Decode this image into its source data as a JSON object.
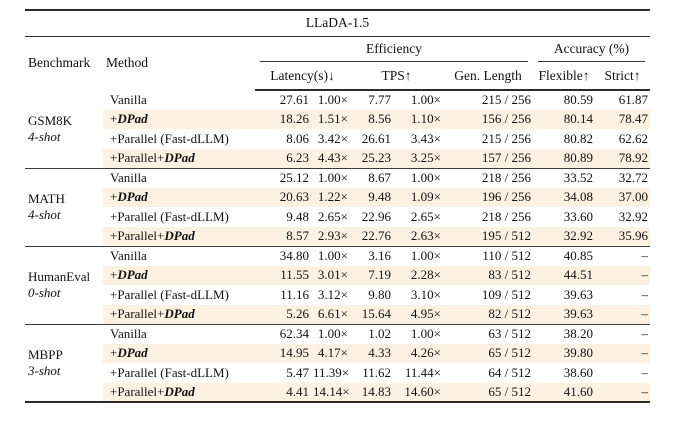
{
  "title": "LLaDA-1.5",
  "colors": {
    "highlight_row": "#fdf2e2",
    "rule": "#2b2b2b",
    "text": "#111111",
    "background": "#ffffff"
  },
  "columns": {
    "benchmark": "Benchmark",
    "method": "Method",
    "efficiency_group": "Efficiency",
    "accuracy_group": "Accuracy (%)",
    "latency": "Latency(s)↓",
    "tps": "TPS↑",
    "gen_length": "Gen. Length",
    "flexible": "Flexible↑",
    "strict": "Strict↑"
  },
  "groups": [
    {
      "benchmark": "GSM8K",
      "shots": "4-shot",
      "rows": [
        {
          "method_prefix": "Vanilla",
          "method_dpad": "",
          "latency": "27.61",
          "latency_x": "1.00×",
          "tps": "7.77",
          "tps_x": "1.00×",
          "gen_length": "215 / 256",
          "flexible": "80.59",
          "strict": "61.87",
          "highlight": false,
          "bold_latency": false
        },
        {
          "method_prefix": "+",
          "method_dpad": "DPad",
          "latency": "18.26",
          "latency_x": "1.51×",
          "tps": "8.56",
          "tps_x": "1.10×",
          "gen_length": "156 / 256",
          "flexible": "80.14",
          "strict": "78.47",
          "highlight": true,
          "bold_latency": false
        },
        {
          "method_prefix": "+Parallel (Fast-dLLM)",
          "method_dpad": "",
          "latency": "8.06",
          "latency_x": "3.42×",
          "tps": "26.61",
          "tps_x": "3.43×",
          "gen_length": "215 / 256",
          "flexible": "80.82",
          "strict": "62.62",
          "highlight": false,
          "bold_latency": false
        },
        {
          "method_prefix": "+Parallel+",
          "method_dpad": "DPad",
          "latency": "6.23",
          "latency_x": "4.43×",
          "tps": "25.23",
          "tps_x": "3.25×",
          "gen_length": "157 / 256",
          "flexible": "80.89",
          "strict": "78.92",
          "highlight": true,
          "bold_latency": true
        }
      ]
    },
    {
      "benchmark": "MATH",
      "shots": "4-shot",
      "rows": [
        {
          "method_prefix": "Vanilla",
          "method_dpad": "",
          "latency": "25.12",
          "latency_x": "1.00×",
          "tps": "8.67",
          "tps_x": "1.00×",
          "gen_length": "218 / 256",
          "flexible": "33.52",
          "strict": "32.72",
          "highlight": false,
          "bold_latency": false
        },
        {
          "method_prefix": "+",
          "method_dpad": "DPad",
          "latency": "20.63",
          "latency_x": "1.22×",
          "tps": "9.48",
          "tps_x": "1.09×",
          "gen_length": "196 / 256",
          "flexible": "34.08",
          "strict": "37.00",
          "highlight": true,
          "bold_latency": false
        },
        {
          "method_prefix": "+Parallel (Fast-dLLM)",
          "method_dpad": "",
          "latency": "9.48",
          "latency_x": "2.65×",
          "tps": "22.96",
          "tps_x": "2.65×",
          "gen_length": "218 / 256",
          "flexible": "33.60",
          "strict": "32.92",
          "highlight": false,
          "bold_latency": false
        },
        {
          "method_prefix": "+Parallel+",
          "method_dpad": "DPad",
          "latency": "8.57",
          "latency_x": "2.93×",
          "tps": "22.76",
          "tps_x": "2.63×",
          "gen_length": "195 / 512",
          "flexible": "32.92",
          "strict": "35.96",
          "highlight": true,
          "bold_latency": true
        }
      ]
    },
    {
      "benchmark": "HumanEval",
      "shots": "0-shot",
      "rows": [
        {
          "method_prefix": "Vanilla",
          "method_dpad": "",
          "latency": "34.80",
          "latency_x": "1.00×",
          "tps": "3.16",
          "tps_x": "1.00×",
          "gen_length": "110 / 512",
          "flexible": "40.85",
          "strict": "–",
          "highlight": false,
          "bold_latency": false
        },
        {
          "method_prefix": "+",
          "method_dpad": "DPad",
          "latency": "11.55",
          "latency_x": "3.01×",
          "tps": "7.19",
          "tps_x": "2.28×",
          "gen_length": "83 / 512",
          "flexible": "44.51",
          "strict": "–",
          "highlight": true,
          "bold_latency": false
        },
        {
          "method_prefix": "+Parallel (Fast-dLLM)",
          "method_dpad": "",
          "latency": "11.16",
          "latency_x": "3.12×",
          "tps": "9.80",
          "tps_x": "3.10×",
          "gen_length": "109 / 512",
          "flexible": "39.63",
          "strict": "–",
          "highlight": false,
          "bold_latency": false
        },
        {
          "method_prefix": "+Parallel+",
          "method_dpad": "DPad",
          "latency": "5.26",
          "latency_x": "6.61×",
          "tps": "15.64",
          "tps_x": "4.95×",
          "gen_length": "82 / 512",
          "flexible": "39.63",
          "strict": "–",
          "highlight": true,
          "bold_latency": true
        }
      ]
    },
    {
      "benchmark": "MBPP",
      "shots": "3-shot",
      "rows": [
        {
          "method_prefix": "Vanilla",
          "method_dpad": "",
          "latency": "62.34",
          "latency_x": "1.00×",
          "tps": "1.02",
          "tps_x": "1.00×",
          "gen_length": "63 / 512",
          "flexible": "38.20",
          "strict": "–",
          "highlight": false,
          "bold_latency": false
        },
        {
          "method_prefix": "+",
          "method_dpad": "DPad",
          "latency": "14.95",
          "latency_x": "4.17×",
          "tps": "4.33",
          "tps_x": "4.26×",
          "gen_length": "65 / 512",
          "flexible": "39.80",
          "strict": "–",
          "highlight": true,
          "bold_latency": false
        },
        {
          "method_prefix": "+Parallel (Fast-dLLM)",
          "method_dpad": "",
          "latency": "5.47",
          "latency_x": "11.39×",
          "tps": "11.62",
          "tps_x": "11.44×",
          "gen_length": "64 / 512",
          "flexible": "38.60",
          "strict": "–",
          "highlight": false,
          "bold_latency": false
        },
        {
          "method_prefix": "+Parallel+",
          "method_dpad": "DPad",
          "latency": "4.41",
          "latency_x": "14.14×",
          "tps": "14.83",
          "tps_x": "14.60×",
          "gen_length": "65 / 512",
          "flexible": "41.60",
          "strict": "–",
          "highlight": true,
          "bold_latency": true
        }
      ]
    }
  ]
}
